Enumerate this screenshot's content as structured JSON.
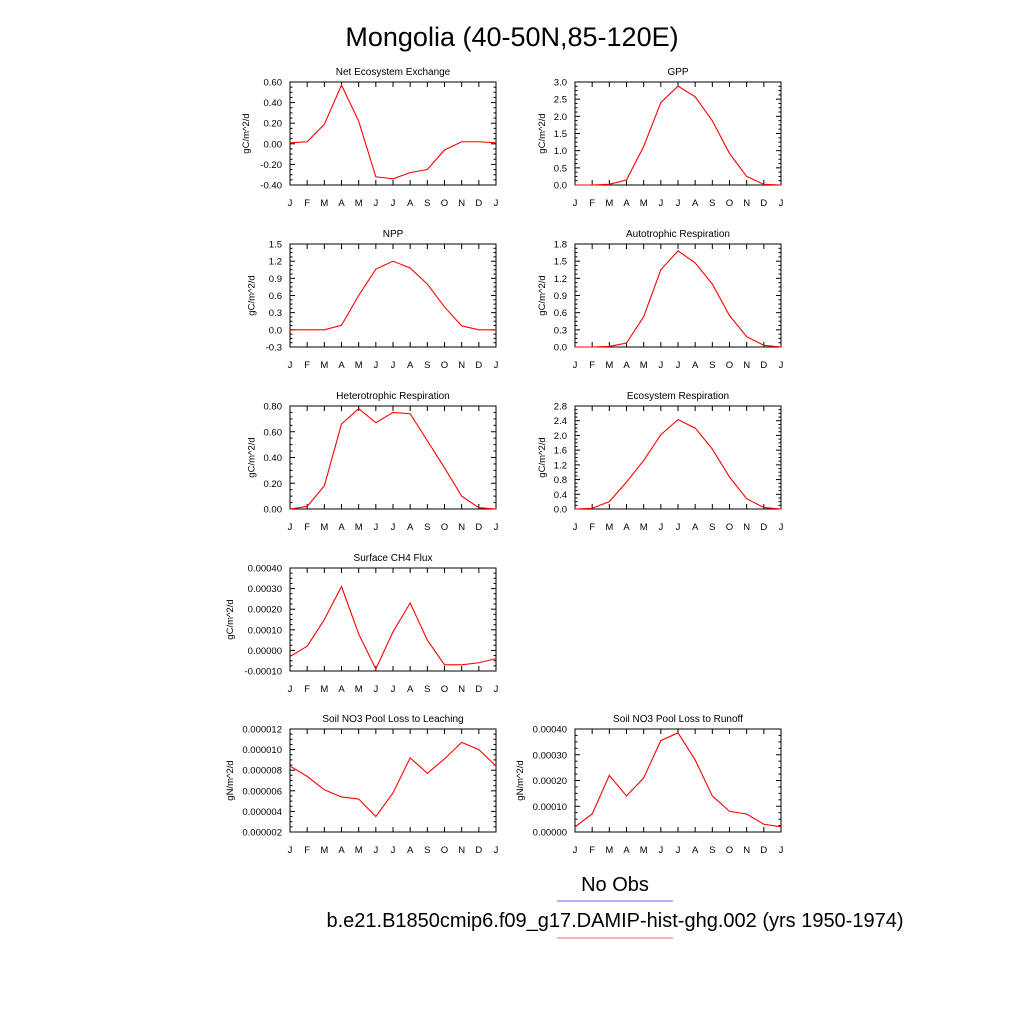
{
  "figure": {
    "title": "Mongolia (40-50N,85-120E)"
  },
  "legend": {
    "entries": [
      {
        "label": "No Obs",
        "color": "#6666ff"
      },
      {
        "label": "b.e21.B1850cmip6.f09_g17.DAMIP-hist-ghg.002 (yrs 1950-1974)",
        "color": "#ff6666"
      }
    ]
  },
  "colors": {
    "series": "#ff0000"
  },
  "chart_data": [
    {
      "type": "line",
      "title": "Net Ecosystem Exchange",
      "ylabel": "gC/m^2/d",
      "categories": [
        "J",
        "F",
        "M",
        "A",
        "M",
        "J",
        "J",
        "A",
        "S",
        "O",
        "N",
        "D",
        "J"
      ],
      "ylim": [
        -0.4,
        0.6
      ],
      "yticks": [
        "0.60",
        "0.40",
        "0.20",
        "0.00",
        "-0.20",
        "-0.40"
      ],
      "series": [
        {
          "values": [
            0.01,
            0.02,
            0.19,
            0.57,
            0.22,
            -0.32,
            -0.34,
            -0.28,
            -0.25,
            -0.06,
            0.02,
            0.02,
            0.01
          ]
        }
      ]
    },
    {
      "type": "line",
      "title": "GPP",
      "ylabel": "gC/m^2/d",
      "categories": [
        "J",
        "F",
        "M",
        "A",
        "M",
        "J",
        "J",
        "A",
        "S",
        "O",
        "N",
        "D",
        "J"
      ],
      "ylim": [
        0,
        3.0
      ],
      "yticks": [
        "3.0",
        "2.5",
        "2.0",
        "1.5",
        "1.0",
        "0.5",
        "0.0"
      ],
      "series": [
        {
          "values": [
            0.0,
            0.0,
            0.02,
            0.15,
            1.12,
            2.4,
            2.88,
            2.57,
            1.87,
            0.92,
            0.25,
            0.02,
            0.0
          ]
        }
      ]
    },
    {
      "type": "line",
      "title": "NPP",
      "ylabel": "gC/m^2/d",
      "categories": [
        "J",
        "F",
        "M",
        "A",
        "M",
        "J",
        "J",
        "A",
        "S",
        "O",
        "N",
        "D",
        "J"
      ],
      "ylim": [
        -0.3,
        1.5
      ],
      "yticks": [
        "1.5",
        "1.2",
        "0.9",
        "0.6",
        "0.3",
        "0.0",
        "-0.3"
      ],
      "series": [
        {
          "values": [
            0.0,
            0.0,
            0.0,
            0.08,
            0.6,
            1.06,
            1.2,
            1.08,
            0.8,
            0.4,
            0.07,
            0.0,
            0.0
          ]
        }
      ]
    },
    {
      "type": "line",
      "title": "Autotrophic Respiration",
      "ylabel": "gC/m^2/d",
      "categories": [
        "J",
        "F",
        "M",
        "A",
        "M",
        "J",
        "J",
        "A",
        "S",
        "O",
        "N",
        "D",
        "J"
      ],
      "ylim": [
        0,
        1.8
      ],
      "yticks": [
        "1.8",
        "1.5",
        "1.2",
        "0.9",
        "0.6",
        "0.3",
        "0.0"
      ],
      "series": [
        {
          "values": [
            0.0,
            0.0,
            0.01,
            0.07,
            0.53,
            1.35,
            1.68,
            1.47,
            1.1,
            0.55,
            0.18,
            0.03,
            0.0
          ]
        }
      ]
    },
    {
      "type": "line",
      "title": "Heterotrophic Respiration",
      "ylabel": "gC/m^2/d",
      "categories": [
        "J",
        "F",
        "M",
        "A",
        "M",
        "J",
        "J",
        "A",
        "S",
        "O",
        "N",
        "D",
        "J"
      ],
      "ylim": [
        0,
        0.8
      ],
      "yticks": [
        "0.80",
        "0.60",
        "0.40",
        "0.20",
        "0.00"
      ],
      "series": [
        {
          "values": [
            0.0,
            0.02,
            0.18,
            0.66,
            0.78,
            0.67,
            0.75,
            0.74,
            0.53,
            0.32,
            0.1,
            0.01,
            0.0
          ]
        }
      ]
    },
    {
      "type": "line",
      "title": "Ecosystem Respiration",
      "ylabel": "gC/m^2/d",
      "categories": [
        "J",
        "F",
        "M",
        "A",
        "M",
        "J",
        "J",
        "A",
        "S",
        "O",
        "N",
        "D",
        "J"
      ],
      "ylim": [
        0,
        2.8
      ],
      "yticks": [
        "2.8",
        "2.4",
        "2.0",
        "1.6",
        "1.2",
        "0.8",
        "0.4",
        "0.0"
      ],
      "series": [
        {
          "values": [
            0.0,
            0.02,
            0.2,
            0.73,
            1.32,
            2.02,
            2.43,
            2.2,
            1.63,
            0.87,
            0.28,
            0.04,
            0.0
          ]
        }
      ]
    },
    {
      "type": "line",
      "title": "Surface CH4 Flux",
      "ylabel": "gC/m^2/d",
      "categories": [
        "J",
        "F",
        "M",
        "A",
        "M",
        "J",
        "J",
        "A",
        "S",
        "O",
        "N",
        "D",
        "J"
      ],
      "ylim": [
        -0.0001,
        0.0004
      ],
      "yticks": [
        "0.00040",
        "0.00030",
        "0.00020",
        "0.00010",
        "0.00000",
        "-0.00010"
      ],
      "series": [
        {
          "values": [
            -3e-05,
            2e-05,
            0.00015,
            0.00031,
            8e-05,
            -9e-05,
            9e-05,
            0.00023,
            5e-05,
            -7e-05,
            -7e-05,
            -6e-05,
            -4e-05
          ]
        }
      ]
    },
    {
      "type": "line",
      "title": "Soil NO3 Pool Loss to Leaching",
      "ylabel": "gN/m^2/d",
      "categories": [
        "J",
        "F",
        "M",
        "A",
        "M",
        "J",
        "J",
        "A",
        "S",
        "O",
        "N",
        "D",
        "J"
      ],
      "ylim": [
        2e-06,
        1.2e-05
      ],
      "yticks": [
        "0.000012",
        "0.000010",
        "0.000008",
        "0.000006",
        "0.000004",
        "0.000002"
      ],
      "series": [
        {
          "values": [
            8.4e-06,
            7.4e-06,
            6.1e-06,
            5.4e-06,
            5.2e-06,
            3.5e-06,
            5.8e-06,
            9.2e-06,
            7.7e-06,
            9.1e-06,
            1.07e-05,
            1e-05,
            8.4e-06
          ]
        }
      ]
    },
    {
      "type": "line",
      "title": "Soil NO3 Pool Loss to Runoff",
      "ylabel": "gN/m^2/d",
      "categories": [
        "J",
        "F",
        "M",
        "A",
        "M",
        "J",
        "J",
        "A",
        "S",
        "O",
        "N",
        "D",
        "J"
      ],
      "ylim": [
        0,
        0.0004
      ],
      "yticks": [
        "0.00040",
        "0.00030",
        "0.00020",
        "0.00010",
        "0.00000"
      ],
      "series": [
        {
          "values": [
            2e-05,
            7e-05,
            0.00022,
            0.00014,
            0.00021,
            0.000355,
            0.000385,
            0.00028,
            0.00014,
            8e-05,
            7e-05,
            3e-05,
            2e-05
          ]
        }
      ]
    }
  ]
}
